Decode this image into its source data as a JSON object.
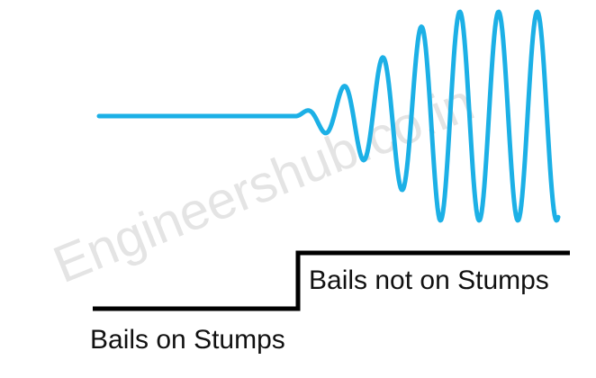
{
  "watermark": "Engineershub.co.in",
  "labels": {
    "bails_not_on_stumps": "Bails not on Stumps",
    "bails_on_stumps": "Bails on Stumps"
  },
  "colors": {
    "signal": "#1cb0e6",
    "step": "#000000",
    "watermark": "#e4e4e4"
  }
}
